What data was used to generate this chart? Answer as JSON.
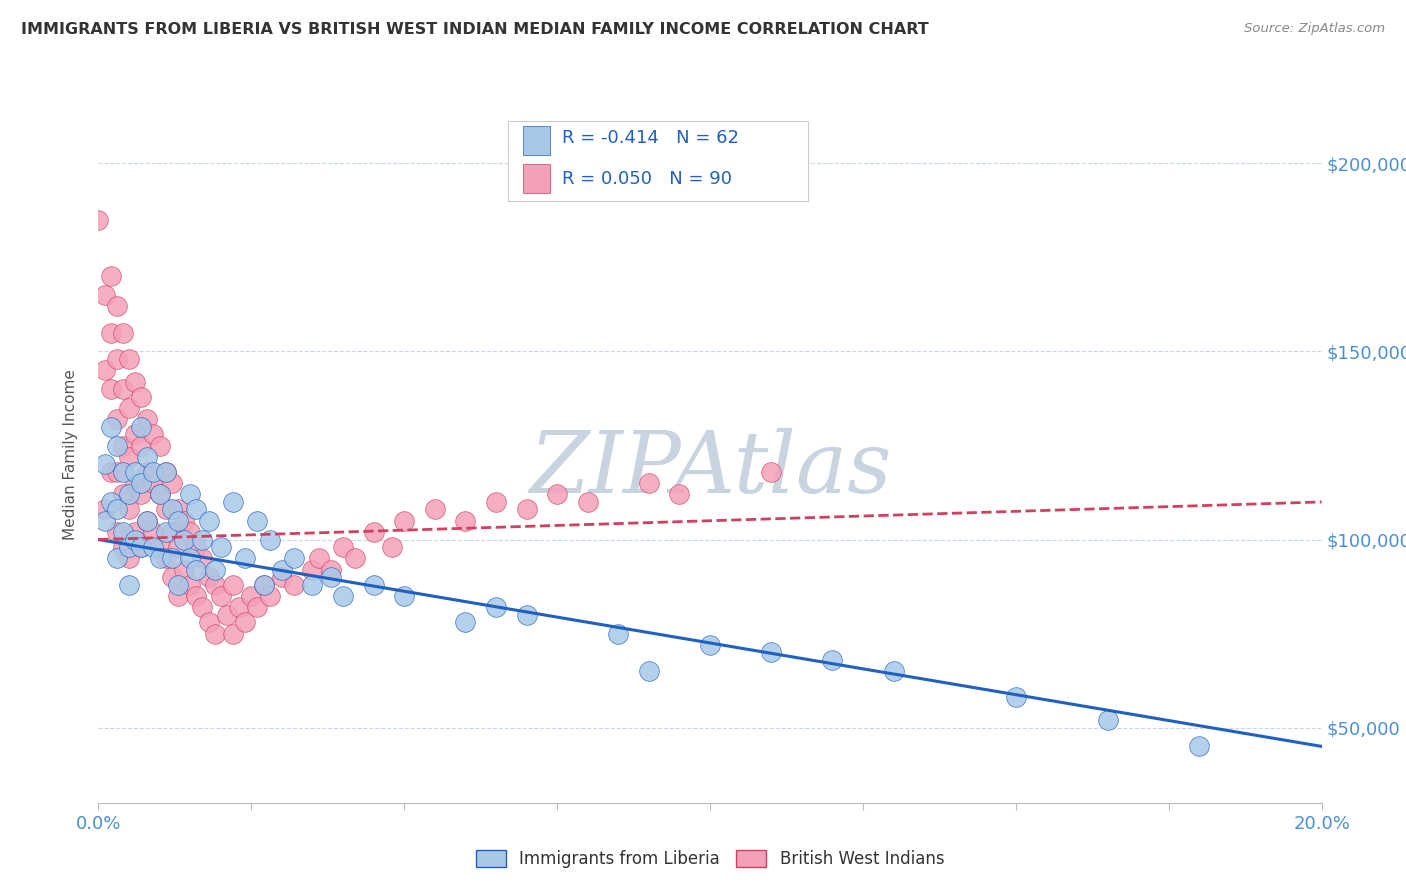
{
  "title": "IMMIGRANTS FROM LIBERIA VS BRITISH WEST INDIAN MEDIAN FAMILY INCOME CORRELATION CHART",
  "source": "Source: ZipAtlas.com",
  "ylabel": "Median Family Income",
  "xlim": [
    0.0,
    0.2
  ],
  "ylim": [
    30000,
    215000
  ],
  "yticks": [
    50000,
    100000,
    150000,
    200000
  ],
  "ytick_labels": [
    "$50,000",
    "$100,000",
    "$150,000",
    "$200,000"
  ],
  "xticks": [
    0.0,
    0.025,
    0.05,
    0.075,
    0.1,
    0.125,
    0.15,
    0.175,
    0.2
  ],
  "series1_color": "#a8c8e8",
  "series2_color": "#f4a0b8",
  "series1_line_color": "#2060c0",
  "series2_line_color": "#d04060",
  "series1_label": "Immigrants from Liberia",
  "series2_label": "British West Indians",
  "series1_R": -0.414,
  "series1_N": 62,
  "series2_R": 0.05,
  "series2_N": 90,
  "background_color": "#ffffff",
  "grid_color": "#c8d8e8",
  "watermark": "ZIPAtlas",
  "watermark_color": "#c8d4e0",
  "title_color": "#333333",
  "axis_color": "#4a90d9",
  "legend_R_color": "#2060c0",
  "series1_line_y0": 100000,
  "series1_line_y1": 45000,
  "series2_line_y0": 100000,
  "series2_line_y1": 110000,
  "series1_x": [
    0.001,
    0.001,
    0.002,
    0.002,
    0.003,
    0.003,
    0.003,
    0.004,
    0.004,
    0.005,
    0.005,
    0.005,
    0.006,
    0.006,
    0.007,
    0.007,
    0.007,
    0.008,
    0.008,
    0.009,
    0.009,
    0.01,
    0.01,
    0.011,
    0.011,
    0.012,
    0.012,
    0.013,
    0.013,
    0.014,
    0.015,
    0.015,
    0.016,
    0.016,
    0.017,
    0.018,
    0.019,
    0.02,
    0.022,
    0.024,
    0.026,
    0.027,
    0.028,
    0.03,
    0.032,
    0.035,
    0.038,
    0.04,
    0.045,
    0.05,
    0.06,
    0.065,
    0.07,
    0.085,
    0.09,
    0.1,
    0.11,
    0.12,
    0.13,
    0.15,
    0.165,
    0.18
  ],
  "series1_y": [
    120000,
    105000,
    130000,
    110000,
    125000,
    108000,
    95000,
    118000,
    102000,
    112000,
    98000,
    88000,
    118000,
    100000,
    130000,
    115000,
    98000,
    122000,
    105000,
    118000,
    98000,
    112000,
    95000,
    118000,
    102000,
    108000,
    95000,
    105000,
    88000,
    100000,
    112000,
    95000,
    108000,
    92000,
    100000,
    105000,
    92000,
    98000,
    110000,
    95000,
    105000,
    88000,
    100000,
    92000,
    95000,
    88000,
    90000,
    85000,
    88000,
    85000,
    78000,
    82000,
    80000,
    75000,
    65000,
    72000,
    70000,
    68000,
    65000,
    58000,
    52000,
    45000
  ],
  "series2_x": [
    0.0,
    0.001,
    0.001,
    0.001,
    0.002,
    0.002,
    0.002,
    0.002,
    0.003,
    0.003,
    0.003,
    0.003,
    0.003,
    0.004,
    0.004,
    0.004,
    0.004,
    0.004,
    0.005,
    0.005,
    0.005,
    0.005,
    0.005,
    0.006,
    0.006,
    0.006,
    0.006,
    0.007,
    0.007,
    0.007,
    0.007,
    0.008,
    0.008,
    0.008,
    0.009,
    0.009,
    0.009,
    0.01,
    0.01,
    0.01,
    0.011,
    0.011,
    0.011,
    0.012,
    0.012,
    0.012,
    0.013,
    0.013,
    0.013,
    0.014,
    0.014,
    0.015,
    0.015,
    0.016,
    0.016,
    0.017,
    0.017,
    0.018,
    0.018,
    0.019,
    0.019,
    0.02,
    0.021,
    0.022,
    0.022,
    0.023,
    0.024,
    0.025,
    0.026,
    0.027,
    0.028,
    0.03,
    0.032,
    0.035,
    0.036,
    0.038,
    0.04,
    0.042,
    0.045,
    0.048,
    0.05,
    0.055,
    0.06,
    0.065,
    0.07,
    0.075,
    0.08,
    0.09,
    0.095,
    0.11
  ],
  "series2_y": [
    185000,
    165000,
    145000,
    108000,
    170000,
    155000,
    140000,
    118000,
    162000,
    148000,
    132000,
    118000,
    102000,
    155000,
    140000,
    125000,
    112000,
    98000,
    148000,
    135000,
    122000,
    108000,
    95000,
    142000,
    128000,
    115000,
    102000,
    138000,
    125000,
    112000,
    98000,
    132000,
    118000,
    105000,
    128000,
    115000,
    102000,
    125000,
    112000,
    98000,
    118000,
    108000,
    95000,
    115000,
    102000,
    90000,
    108000,
    98000,
    85000,
    105000,
    92000,
    102000,
    88000,
    98000,
    85000,
    95000,
    82000,
    90000,
    78000,
    88000,
    75000,
    85000,
    80000,
    88000,
    75000,
    82000,
    78000,
    85000,
    82000,
    88000,
    85000,
    90000,
    88000,
    92000,
    95000,
    92000,
    98000,
    95000,
    102000,
    98000,
    105000,
    108000,
    105000,
    110000,
    108000,
    112000,
    110000,
    115000,
    112000,
    118000
  ]
}
